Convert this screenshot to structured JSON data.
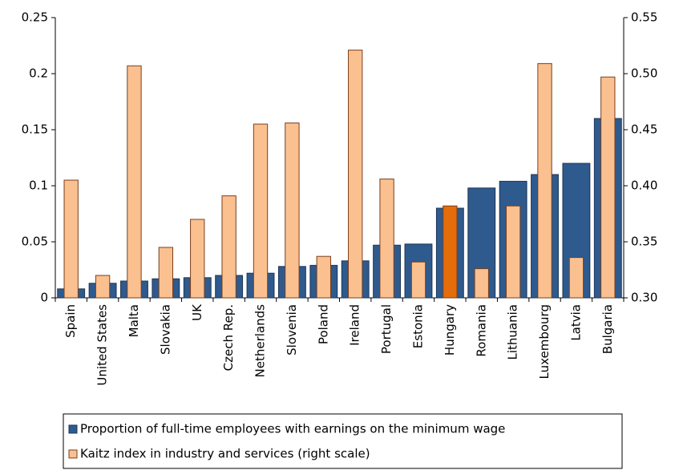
{
  "chart_data": {
    "type": "bar",
    "categories": [
      "Spain",
      "United States",
      "Malta",
      "Slovakia",
      "UK",
      "Czech Rep.",
      "Netherlands",
      "Slovenia",
      "Poland",
      "Ireland",
      "Portugal",
      "Estonia",
      "Hungary",
      "Romania",
      "Lithuania",
      "Luxembourg",
      "Latvia",
      "Bulgaria"
    ],
    "series": [
      {
        "name": "Proportion of full-time employees with earnings on the minimum wage",
        "color": "#2e5a8e",
        "values": [
          0.008,
          0.013,
          0.015,
          0.017,
          0.018,
          0.02,
          0.022,
          0.028,
          0.029,
          0.033,
          0.047,
          0.048,
          0.08,
          0.098,
          0.104,
          0.11,
          0.12,
          0.16
        ]
      },
      {
        "name": "Kaitz index in industry and services (right scale)",
        "color": "#fac090",
        "axis": "y2",
        "colors": [
          "#fac090",
          "#fac090",
          "#fac090",
          "#fac090",
          "#fac090",
          "#fac090",
          "#fac090",
          "#fac090",
          "#fac090",
          "#fac090",
          "#fac090",
          "#fac090",
          "#e46c0a",
          "#fac090",
          "#fac090",
          "#fac090",
          "#fac090",
          "#fac090"
        ],
        "values": [
          0.405,
          0.32,
          0.507,
          0.345,
          0.37,
          0.391,
          0.455,
          0.456,
          0.337,
          0.521,
          0.406,
          0.332,
          0.382,
          0.326,
          0.382,
          0.509,
          0.336,
          0.497
        ]
      }
    ],
    "ylim": [
      0,
      0.25
    ],
    "yticks": [
      0,
      0.05,
      0.1,
      0.15,
      0.2,
      0.25
    ],
    "y2lim": [
      0.3,
      0.55
    ],
    "y2ticks": [
      {
        "value": 0.3,
        "label": "0.30"
      },
      0.35,
      {
        "value": 0.4,
        "label": "0.40"
      },
      0.45,
      {
        "value": 0.5,
        "label": "0.50"
      },
      0.55
    ],
    "legend": "bottom"
  }
}
